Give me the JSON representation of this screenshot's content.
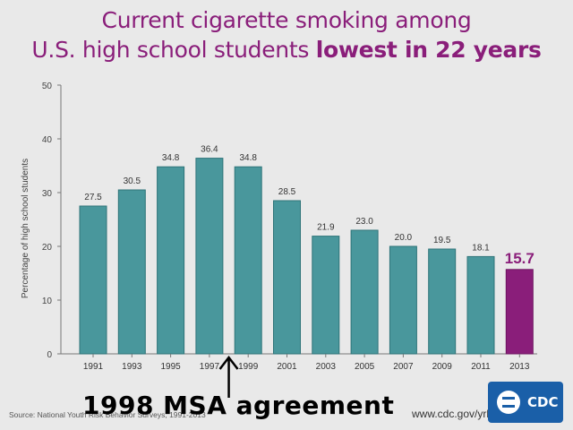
{
  "title": {
    "line1": "Current cigarette smoking among",
    "line2_prefix": "U.S. high school students ",
    "line2_bold": "lowest in 22 years"
  },
  "colors": {
    "bar": "#3b8f95",
    "bar_highlight": "#8a1e7a",
    "title": "#8a1e7a",
    "logo": "#1a5fa8"
  },
  "chart_data": {
    "type": "bar",
    "categories": [
      "1991",
      "1993",
      "1995",
      "1997",
      "1999",
      "2001",
      "2003",
      "2005",
      "2007",
      "2009",
      "2011",
      "2013"
    ],
    "values": [
      27.5,
      30.5,
      34.8,
      36.4,
      34.8,
      28.5,
      21.9,
      23.0,
      20.0,
      19.5,
      18.1,
      15.7
    ],
    "value_labels": [
      "27.5",
      "30.5",
      "34.8",
      "36.4",
      "34.8",
      "28.5",
      "21.9",
      "23.0",
      "20.0",
      "19.5",
      "18.1",
      "15.7"
    ],
    "highlight_index": 11,
    "ylabel": "Percentage of high school students",
    "xlabel": "",
    "ylim": [
      0,
      50
    ],
    "yticks": [
      "0",
      "10",
      "20",
      "30",
      "40",
      "50"
    ],
    "grid": false
  },
  "source": "Source: National Youth Risk Behavior Surveys, 1991-2013",
  "url": "www.cdc.gov/yrbs",
  "annotation": "1998 MSA agreement",
  "logo": {
    "text": "CDC",
    "icon": "hhs-eagle-icon"
  }
}
